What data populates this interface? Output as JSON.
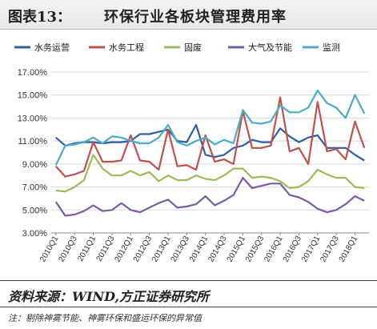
{
  "header": {
    "figure_label": "图表13：",
    "title": "环保行业各板块管理费用率"
  },
  "footer": {
    "source": "资料来源：WIND,方正证券研究所",
    "note": "注：剔除神雾节能、神雾环保和盛运环保的异常值"
  },
  "chart_data": {
    "type": "line",
    "title": "环保行业各板块管理费用率",
    "ylim": [
      3,
      17
    ],
    "y_ticks": [
      "3.00%",
      "5.00%",
      "7.00%",
      "9.00%",
      "11.00%",
      "13.00%",
      "15.00%",
      "17.00%"
    ],
    "y_tick_values": [
      3,
      5,
      7,
      9,
      11,
      13,
      15,
      17
    ],
    "x_tick_labels": [
      "2010Q1",
      "2010Q3",
      "2011Q1",
      "2011Q3",
      "2012Q1",
      "2012Q3",
      "2013Q1",
      "2013Q3",
      "2014Q1",
      "2014Q3",
      "2015Q1",
      "2015Q3",
      "2016Q1",
      "2016Q3",
      "2017Q1",
      "2017Q3",
      "2018Q1"
    ],
    "x": [
      "2010Q1",
      "2010Q2",
      "2010Q3",
      "2010Q4",
      "2011Q1",
      "2011Q2",
      "2011Q3",
      "2011Q4",
      "2012Q1",
      "2012Q2",
      "2012Q3",
      "2012Q4",
      "2013Q1",
      "2013Q2",
      "2013Q3",
      "2013Q4",
      "2014Q1",
      "2014Q2",
      "2014Q3",
      "2014Q4",
      "2015Q1",
      "2015Q2",
      "2015Q3",
      "2015Q4",
      "2016Q1",
      "2016Q2",
      "2016Q3",
      "2016Q4",
      "2017Q1",
      "2017Q2",
      "2017Q3",
      "2017Q4",
      "2018Q1",
      "2018Q2"
    ],
    "legend_position": "top",
    "grid": true,
    "series": [
      {
        "name": "水务运营",
        "color": "#2e5fa3",
        "values": [
          11.3,
          10.6,
          10.8,
          10.9,
          10.9,
          10.8,
          10.9,
          10.9,
          11.0,
          11.6,
          11.6,
          11.8,
          12.0,
          11.0,
          10.9,
          12.4,
          9.8,
          9.6,
          9.8,
          10.4,
          10.6,
          11.1,
          10.9,
          10.9,
          12.1,
          11.4,
          10.9,
          11.3,
          11.5,
          10.4,
          10.4,
          10.4,
          9.8,
          9.3
        ]
      },
      {
        "name": "水务工程",
        "color": "#c0504d",
        "values": [
          8.8,
          7.9,
          8.1,
          8.4,
          10.9,
          9.2,
          9.2,
          9.3,
          11.5,
          9.3,
          9.2,
          8.5,
          12.0,
          8.8,
          8.9,
          8.5,
          11.5,
          9.2,
          9.4,
          9.0,
          13.6,
          10.4,
          10.4,
          10.6,
          14.8,
          10.1,
          10.4,
          9.0,
          14.4,
          10.1,
          10.3,
          9.4,
          12.7,
          10.4
        ]
      },
      {
        "name": "固废",
        "color": "#9bbb59",
        "values": [
          6.7,
          6.6,
          7.0,
          7.6,
          9.8,
          8.6,
          8.0,
          8.0,
          8.4,
          8.0,
          8.3,
          7.5,
          8.0,
          7.6,
          7.6,
          8.0,
          7.7,
          7.6,
          8.0,
          8.6,
          8.6,
          7.8,
          7.9,
          7.8,
          7.5,
          6.9,
          7.0,
          7.5,
          8.5,
          8.1,
          7.8,
          7.8,
          7.0,
          6.9
        ]
      },
      {
        "name": "大气及节能",
        "color": "#7a5ba6",
        "values": [
          5.7,
          4.5,
          4.6,
          4.9,
          5.4,
          4.9,
          5.0,
          5.6,
          5.0,
          4.8,
          5.2,
          5.6,
          5.9,
          5.2,
          5.3,
          5.5,
          6.2,
          5.4,
          5.8,
          6.3,
          7.8,
          6.9,
          7.1,
          7.3,
          7.3,
          6.3,
          6.1,
          5.7,
          5.1,
          4.8,
          5.0,
          5.5,
          6.2,
          5.8
        ]
      },
      {
        "name": "监测",
        "color": "#4bacc6",
        "values": [
          8.9,
          10.6,
          10.7,
          10.9,
          11.3,
          10.8,
          11.4,
          11.3,
          11.0,
          10.8,
          10.8,
          11.3,
          12.4,
          10.9,
          10.6,
          11.0,
          11.3,
          10.7,
          11.1,
          10.8,
          13.7,
          12.6,
          12.5,
          12.7,
          14.1,
          13.5,
          13.5,
          13.9,
          15.4,
          14.3,
          13.9,
          13.0,
          15.0,
          13.4
        ]
      }
    ]
  }
}
